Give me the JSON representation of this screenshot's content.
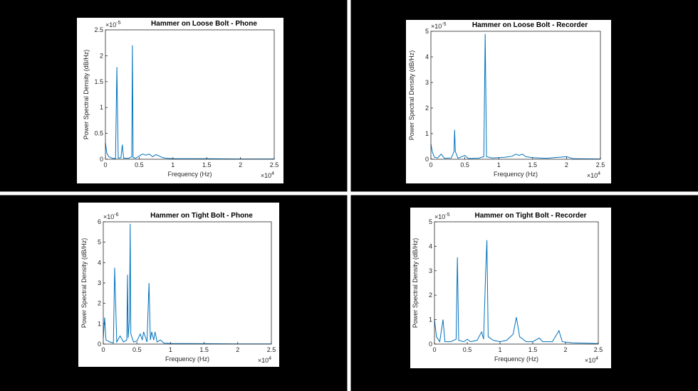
{
  "chart_data": [
    {
      "type": "line",
      "title": "Hammer on Loose Bolt - Phone",
      "x_label": "Frequency (Hz)",
      "y_label": "Power Spectral Density (dB/Hz)",
      "x_multiplier": {
        "base": "×10",
        "exponent": "4"
      },
      "y_multiplier": {
        "base": "×10",
        "exponent": "-5"
      },
      "color": "#0072bd",
      "xlim": [
        0,
        2.5
      ],
      "xticks": [
        0,
        0.5,
        1,
        1.5,
        2,
        2.5
      ],
      "ylim": [
        0,
        2.5
      ],
      "yticks": [
        0,
        0.5,
        1,
        1.5,
        2,
        2.5
      ],
      "x": [
        0,
        0.02,
        0.05,
        0.1,
        0.15,
        0.17,
        0.19,
        0.23,
        0.25,
        0.27,
        0.35,
        0.39,
        0.4,
        0.41,
        0.45,
        0.5,
        0.55,
        0.6,
        0.65,
        0.7,
        0.75,
        0.8,
        0.85,
        0.9,
        1.0,
        1.5,
        2.0,
        2.5
      ],
      "values": [
        0.32,
        0.12,
        0.05,
        0.02,
        0.01,
        1.78,
        0.02,
        0.03,
        0.28,
        0.02,
        0.02,
        0.05,
        2.2,
        0.03,
        0.02,
        0.06,
        0.1,
        0.08,
        0.1,
        0.05,
        0.09,
        0.06,
        0.03,
        0.02,
        0.01,
        0.01,
        0.005,
        0.005
      ]
    },
    {
      "type": "line",
      "title": "Hammer on Loose Bolt - Recorder",
      "x_label": "Frequency (Hz)",
      "y_label": "Power Spectral Density (dB/Hz)",
      "x_multiplier": {
        "base": "×10",
        "exponent": "4"
      },
      "y_multiplier": {
        "base": "×10",
        "exponent": "-5"
      },
      "color": "#0072bd",
      "xlim": [
        0,
        2.5
      ],
      "xticks": [
        0,
        0.5,
        1,
        1.5,
        2,
        2.5
      ],
      "ylim": [
        0,
        5
      ],
      "yticks": [
        0,
        1,
        2,
        3,
        4,
        5
      ],
      "x": [
        0,
        0.02,
        0.05,
        0.1,
        0.15,
        0.2,
        0.3,
        0.34,
        0.35,
        0.36,
        0.4,
        0.5,
        0.55,
        0.7,
        0.78,
        0.8,
        0.82,
        0.9,
        1.0,
        1.1,
        1.2,
        1.25,
        1.3,
        1.35,
        1.4,
        1.5,
        1.7,
        2.0,
        2.1,
        2.5
      ],
      "values": [
        0.6,
        0.3,
        0.08,
        0.05,
        0.2,
        0.04,
        0.05,
        0.3,
        1.15,
        0.3,
        0.04,
        0.15,
        0.03,
        0.04,
        0.1,
        4.9,
        0.1,
        0.05,
        0.06,
        0.08,
        0.12,
        0.2,
        0.15,
        0.2,
        0.1,
        0.06,
        0.04,
        0.1,
        0.02,
        0.01
      ]
    },
    {
      "type": "line",
      "title": "Hammer on Tight Bolt - Phone",
      "x_label": "Frequency (Hz)",
      "y_label": "Power Spectral Density (dB/Hz)",
      "x_multiplier": {
        "base": "×10",
        "exponent": "4"
      },
      "y_multiplier": {
        "base": "×10",
        "exponent": "-6"
      },
      "color": "#0072bd",
      "xlim": [
        0,
        2.5
      ],
      "xticks": [
        0,
        0.5,
        1,
        1.5,
        2,
        2.5
      ],
      "ylim": [
        0,
        6
      ],
      "yticks": [
        0,
        1,
        2,
        3,
        4,
        5,
        6
      ],
      "x": [
        0,
        0.02,
        0.04,
        0.1,
        0.15,
        0.17,
        0.2,
        0.25,
        0.3,
        0.35,
        0.36,
        0.37,
        0.39,
        0.4,
        0.41,
        0.45,
        0.5,
        0.55,
        0.58,
        0.6,
        0.65,
        0.68,
        0.7,
        0.72,
        0.75,
        0.77,
        0.8,
        0.85,
        0.9,
        1.0,
        1.5,
        2.0,
        2.5
      ],
      "values": [
        0.3,
        1.3,
        0.2,
        0.1,
        0.05,
        3.75,
        0.1,
        0.4,
        0.1,
        0.2,
        3.4,
        0.3,
        1.2,
        5.9,
        0.5,
        0.1,
        0.15,
        0.5,
        0.2,
        0.6,
        0.1,
        3.0,
        0.2,
        0.6,
        0.2,
        0.6,
        0.1,
        0.2,
        0.05,
        0.03,
        0.02,
        0.01,
        0.01
      ]
    },
    {
      "type": "line",
      "title": "Hammer on Tight Bolt - Recorder",
      "x_label": "Frequency (Hz)",
      "y_label": "Power Spectral Density (dB/Hz)",
      "x_multiplier": {
        "base": "×10",
        "exponent": "4"
      },
      "y_multiplier": {
        "base": "×10",
        "exponent": "-5"
      },
      "color": "#0072bd",
      "xlim": [
        0,
        2.5
      ],
      "xticks": [
        0,
        0.5,
        1,
        1.5,
        2,
        2.5
      ],
      "ylim": [
        0,
        5
      ],
      "yticks": [
        0,
        1,
        2,
        3,
        4,
        5
      ],
      "x": [
        0,
        0.03,
        0.08,
        0.13,
        0.16,
        0.25,
        0.33,
        0.35,
        0.37,
        0.45,
        0.5,
        0.55,
        0.65,
        0.72,
        0.75,
        0.78,
        0.8,
        0.82,
        0.9,
        1.0,
        1.1,
        1.2,
        1.25,
        1.3,
        1.4,
        1.5,
        1.6,
        1.65,
        1.8,
        1.9,
        1.95,
        2.1,
        2.5
      ],
      "values": [
        1.0,
        0.3,
        0.1,
        1.0,
        0.1,
        0.1,
        0.2,
        3.55,
        0.15,
        0.1,
        0.2,
        0.1,
        0.15,
        0.5,
        0.2,
        2.9,
        4.25,
        0.3,
        0.15,
        0.1,
        0.15,
        0.4,
        1.1,
        0.3,
        0.1,
        0.1,
        0.25,
        0.1,
        0.1,
        0.55,
        0.1,
        0.05,
        0.02
      ]
    }
  ]
}
